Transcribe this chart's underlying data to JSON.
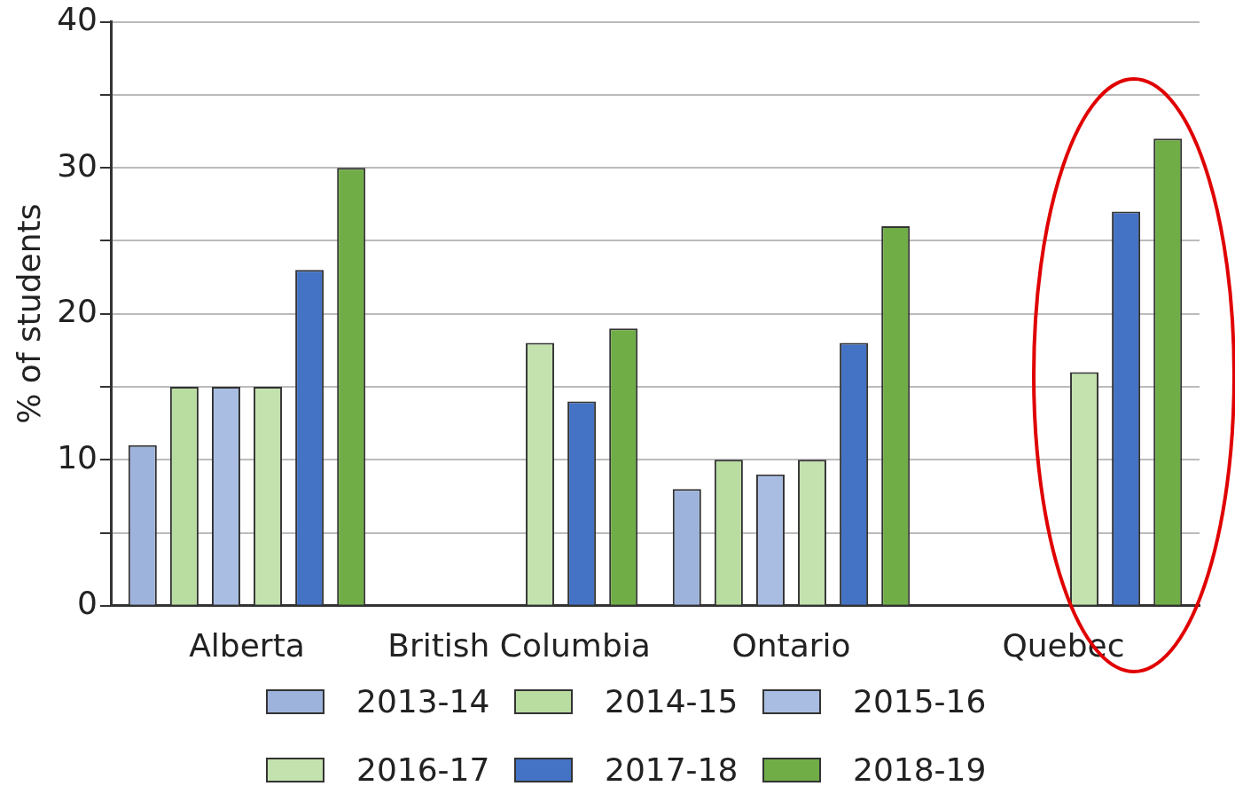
{
  "chart_data": {
    "type": "bar",
    "ylabel": "% of students",
    "categories": [
      "Alberta",
      "British Columbia",
      "Ontario",
      "Quebec"
    ],
    "series": [
      {
        "name": "2013-14",
        "color": "#9db3dc",
        "values": [
          11,
          null,
          8,
          null
        ]
      },
      {
        "name": "2014-15",
        "color": "#b9dca0",
        "values": [
          15,
          null,
          10,
          null
        ]
      },
      {
        "name": "2015-16",
        "color": "#a9bde3",
        "values": [
          15,
          null,
          9,
          null
        ]
      },
      {
        "name": "2016-17",
        "color": "#c3e2ae",
        "values": [
          15,
          18,
          10,
          16
        ]
      },
      {
        "name": "2017-18",
        "color": "#4472c4",
        "values": [
          23,
          14,
          18,
          27
        ]
      },
      {
        "name": "2018-19",
        "color": "#70ad47",
        "values": [
          30,
          19,
          26,
          32
        ]
      }
    ],
    "ylim": [
      0,
      40
    ],
    "yticks": [
      0,
      {
        "value": 5,
        "label": null
      },
      10,
      {
        "value": 15,
        "label": null
      },
      20,
      {
        "value": 25,
        "label": null
      },
      30,
      {
        "value": 35,
        "label": null
      },
      40
    ],
    "grid": "y",
    "legend": "bottom"
  }
}
